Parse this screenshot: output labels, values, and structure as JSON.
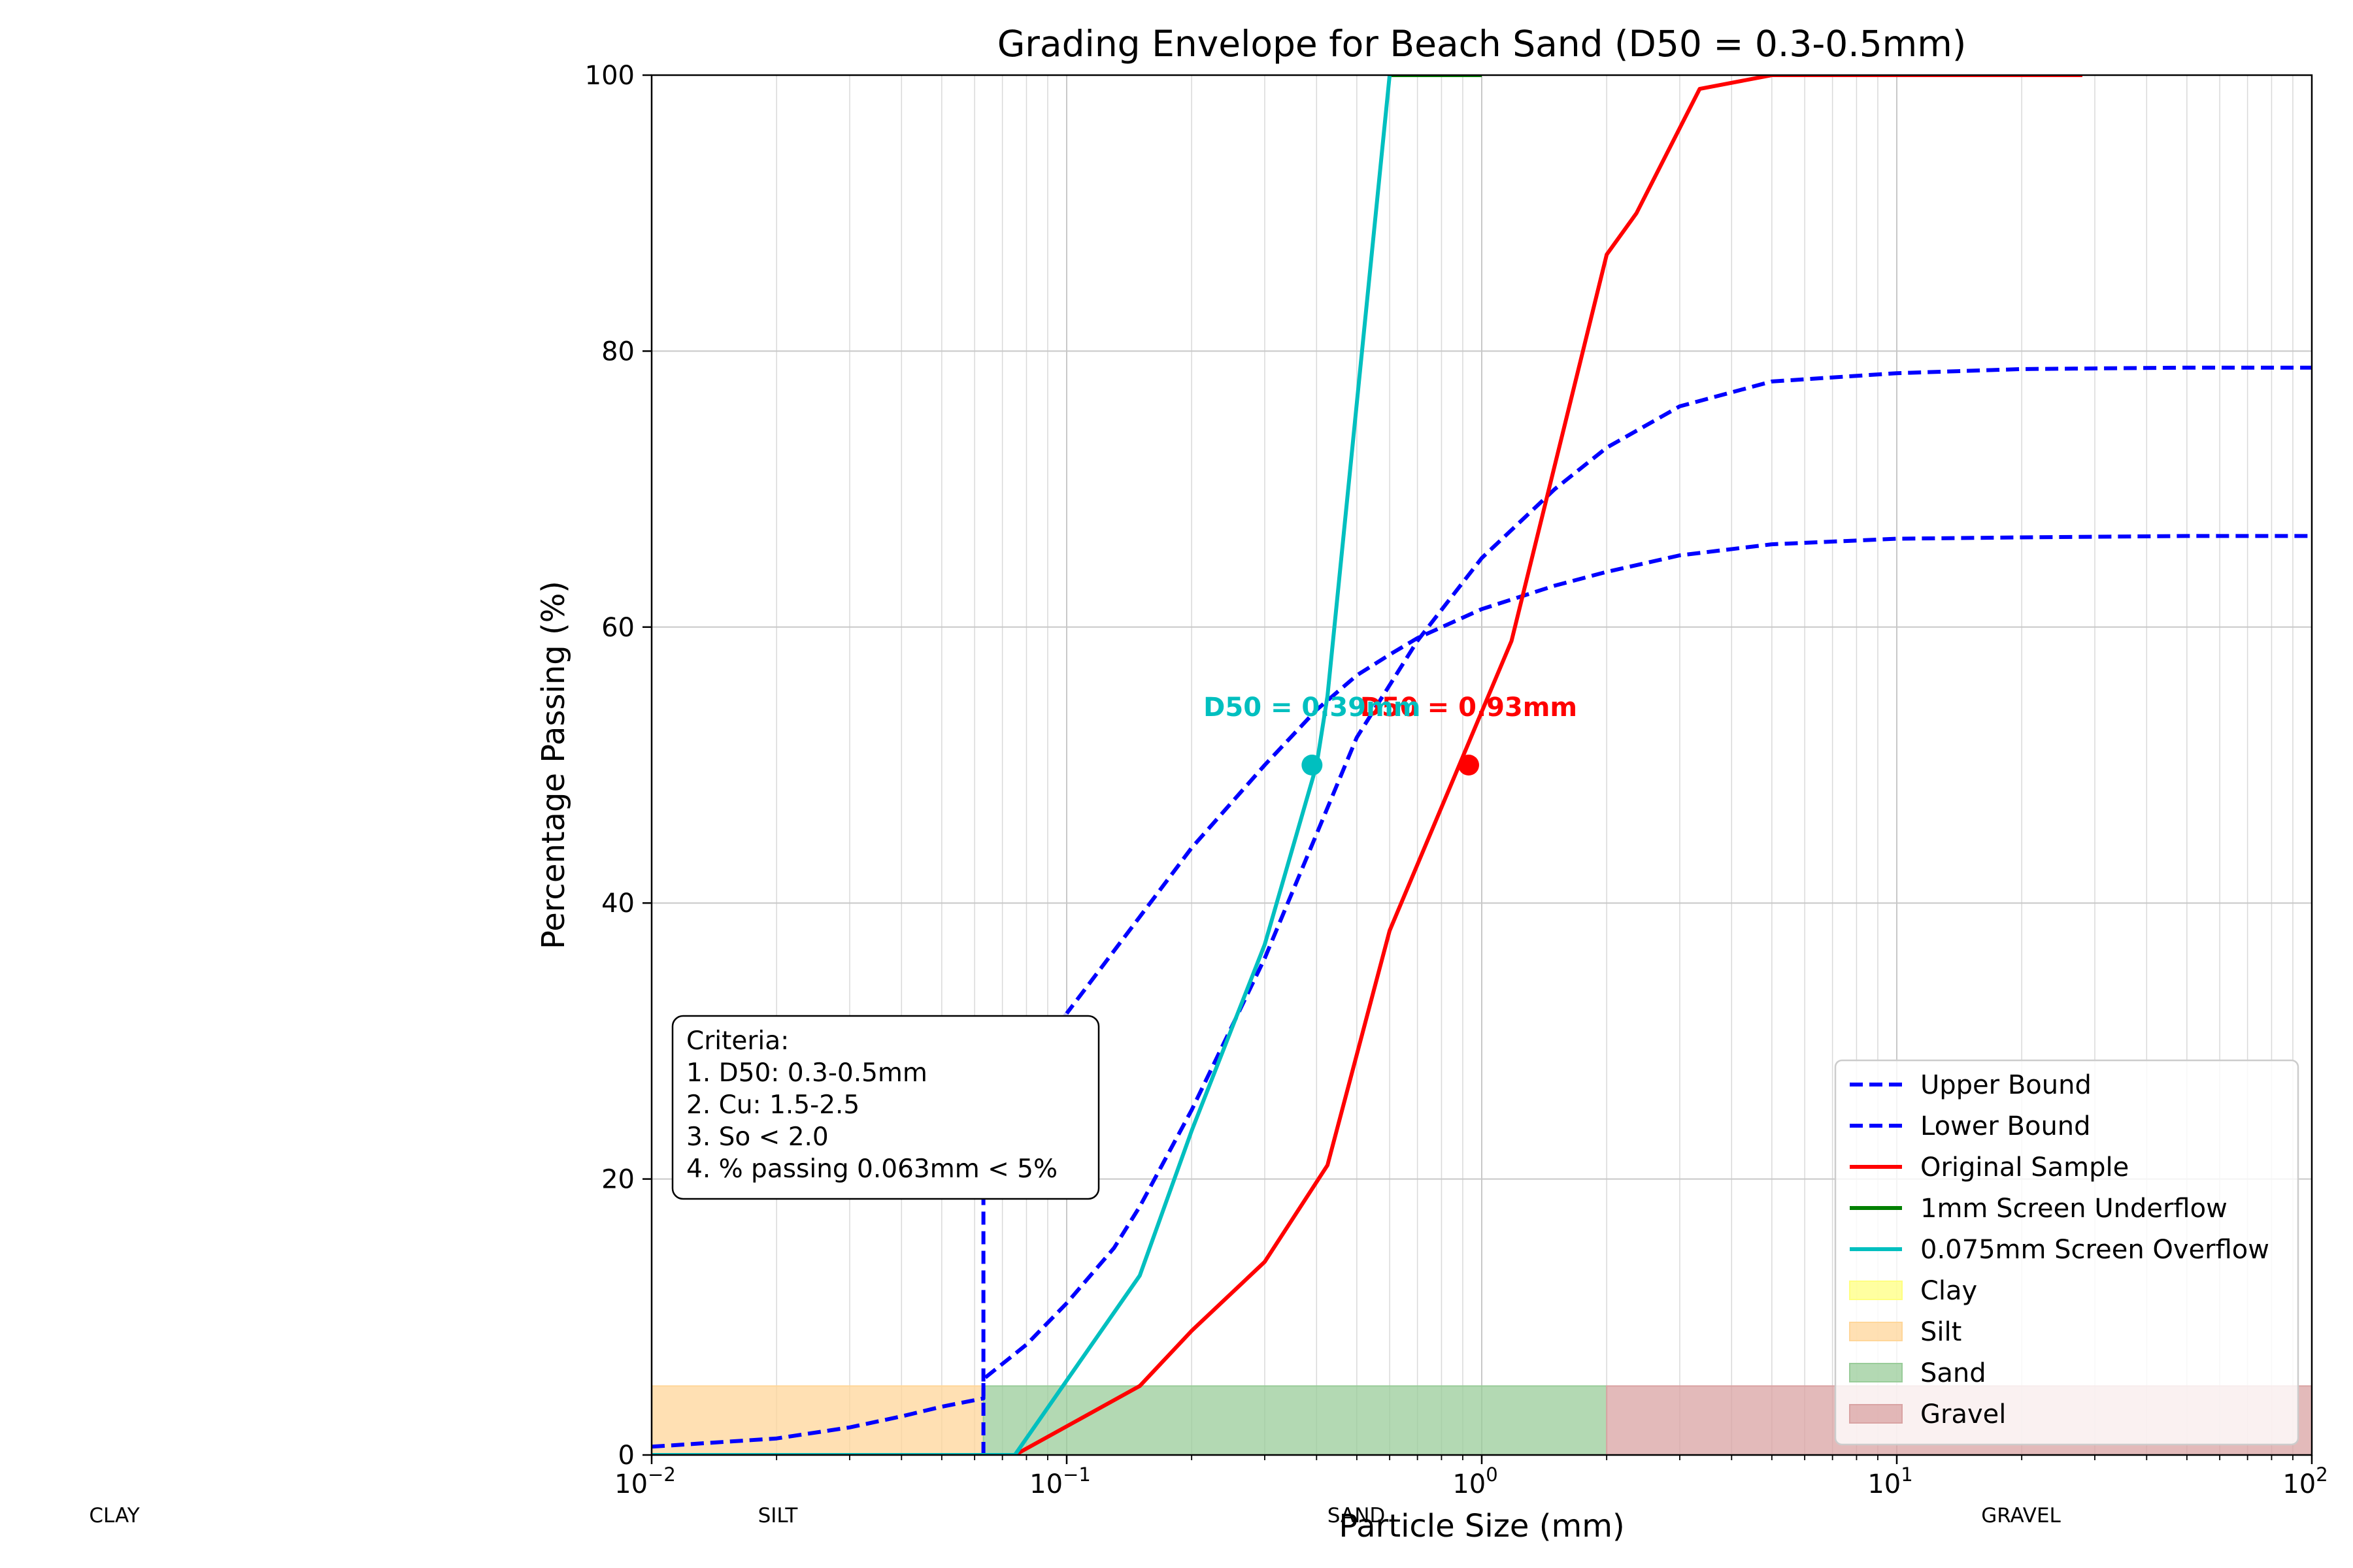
{
  "chart_data": {
    "type": "line",
    "title": "Grading Envelope for Beach Sand (D50 = 0.3-0.5mm)",
    "xlabel": "Particle Size (mm)",
    "ylabel": "Percentage Passing (%)",
    "xscale": "log",
    "xlim": [
      0.01,
      100
    ],
    "ylim": [
      0,
      100
    ],
    "xticks": [
      {
        "value": 0.01,
        "base": "10",
        "exp": "−2"
      },
      {
        "value": 0.1,
        "base": "10",
        "exp": "−1"
      },
      {
        "value": 1,
        "base": "10",
        "exp": "0"
      },
      {
        "value": 10,
        "base": "10",
        "exp": "1"
      },
      {
        "value": 100,
        "base": "10",
        "exp": "2"
      }
    ],
    "yticks": [
      0,
      20,
      40,
      60,
      80,
      100
    ],
    "grid": true,
    "legend_position": "lower-right",
    "series": [
      {
        "name": "Upper Bound",
        "color": "#0000ff",
        "style": "dashed",
        "x": [
          0.01,
          0.02,
          0.03,
          0.04,
          0.05,
          0.063,
          0.063,
          0.1,
          0.15,
          0.2,
          0.3,
          0.4,
          0.5,
          0.6,
          0.7,
          1,
          1.5,
          2,
          3,
          5,
          10,
          20,
          50,
          100
        ],
        "y": [
          0.6,
          1.2,
          2.0,
          2.8,
          3.5,
          4.1,
          23.5,
          32,
          39,
          44,
          50,
          54,
          56.5,
          58,
          59.2,
          61.3,
          63,
          64,
          65.2,
          66,
          66.4,
          66.5,
          66.6,
          66.6
        ]
      },
      {
        "name": "Lower Bound",
        "color": "#0000ff",
        "style": "dashed",
        "x": [
          0.063,
          0.063,
          0.08,
          0.1,
          0.13,
          0.15,
          0.2,
          0.3,
          0.4,
          0.5,
          0.7,
          1,
          1.5,
          2,
          3,
          5,
          10,
          20,
          50,
          100
        ],
        "y": [
          0,
          5.5,
          8,
          11,
          15,
          18,
          25,
          36,
          45,
          52,
          59,
          65,
          70,
          73,
          76,
          77.8,
          78.4,
          78.7,
          78.8,
          78.8
        ]
      },
      {
        "name": "Original Sample",
        "color": "#ff0000",
        "style": "solid",
        "x": [
          0.075,
          0.15,
          0.2,
          0.3,
          0.425,
          0.6,
          1.18,
          2,
          2.36,
          3.35,
          5,
          10,
          28
        ],
        "y": [
          0,
          5,
          9,
          14,
          21,
          38,
          59,
          87,
          90,
          99,
          100,
          100,
          100
        ]
      },
      {
        "name": "1mm Screen Underflow",
        "color": "#008000",
        "style": "solid",
        "x": [
          0.6,
          1
        ],
        "y": [
          100,
          100
        ]
      },
      {
        "name": "0.075mm Screen Overflow",
        "color": "#00bfbf",
        "style": "solid",
        "x": [
          0.01,
          0.075,
          0.15,
          0.2,
          0.3,
          0.4,
          0.425,
          0.6
        ],
        "y": [
          0,
          0,
          13,
          23.5,
          37,
          50,
          55,
          100
        ]
      }
    ],
    "markers": [
      {
        "series": "Original Sample",
        "x": 0.93,
        "y": 50,
        "color": "#ff0000",
        "label": "D50 = 0.93mm"
      },
      {
        "series": "0.075mm Screen Overflow",
        "x": 0.39,
        "y": 50,
        "color": "#00bfbf",
        "label": "D50 = 0.39mm"
      }
    ],
    "zones": [
      {
        "name": "Clay",
        "color": "#ffff80",
        "x": [
          0.001,
          0.002
        ],
        "y": [
          0,
          5
        ]
      },
      {
        "name": "Silt",
        "color": "#ffd699",
        "x": [
          0.002,
          0.063
        ],
        "y": [
          0,
          5
        ]
      },
      {
        "name": "Sand",
        "color": "#99cc99",
        "x": [
          0.063,
          2
        ],
        "y": [
          0,
          5
        ]
      },
      {
        "name": "Gravel",
        "color": "#d9a3a3",
        "x": [
          2,
          100
        ],
        "y": [
          0,
          5
        ]
      }
    ],
    "annotation": {
      "lines": [
        "Criteria:",
        "1. D50: 0.3-0.5mm",
        "2. Cu: 1.5-2.5",
        "3. So < 2.0",
        "4. % passing 0.063mm < 5%"
      ]
    },
    "zone_labels": [
      "CLAY",
      "SILT",
      "SAND",
      "GRAVEL"
    ]
  }
}
